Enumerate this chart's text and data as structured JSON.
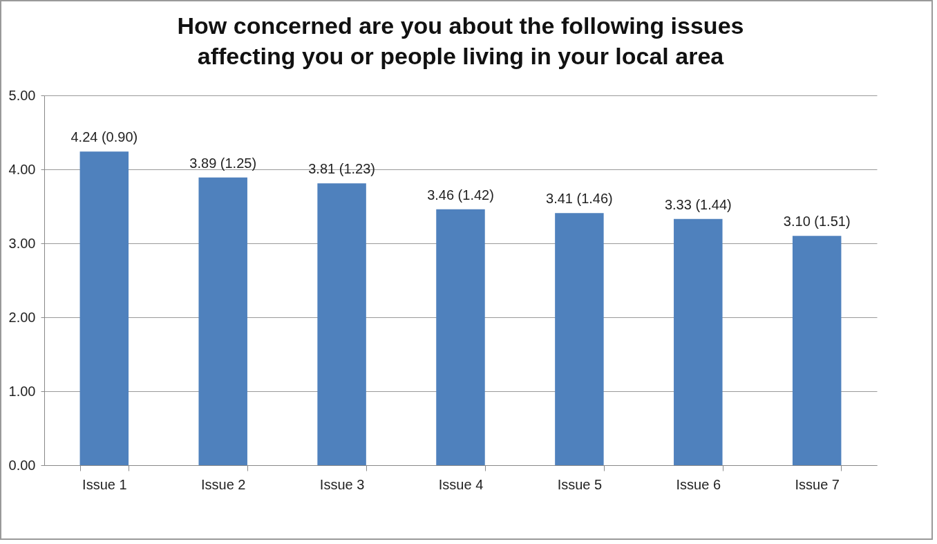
{
  "chart_data": {
    "type": "bar",
    "title": "How concerned are you about the following issues\naffecting you or people living in your local area",
    "categories": [
      "Issue 1",
      "Issue 2",
      "Issue 3",
      "Issue 4",
      "Issue 5",
      "Issue 6",
      "Issue 7"
    ],
    "values": [
      4.24,
      3.89,
      3.81,
      3.46,
      3.41,
      3.33,
      3.1
    ],
    "value_labels": [
      "4.24 (0.90)",
      "3.89 (1.25)",
      "3.81 (1.23)",
      "3.46 (1.42)",
      "3.41 (1.46)",
      "3.33 (1.44)",
      "3.10 (1.51)"
    ],
    "color": "#4f81bd",
    "ylim": [
      0,
      5
    ],
    "yticks": [
      {
        "value": 0,
        "label": "0.00"
      },
      {
        "value": 1,
        "label": "1.00"
      },
      {
        "value": 2,
        "label": "2.00"
      },
      {
        "value": 3,
        "label": "3.00"
      },
      {
        "value": 4,
        "label": "4.00"
      },
      {
        "value": 5,
        "label": "5.00"
      }
    ],
    "grid": "y"
  }
}
